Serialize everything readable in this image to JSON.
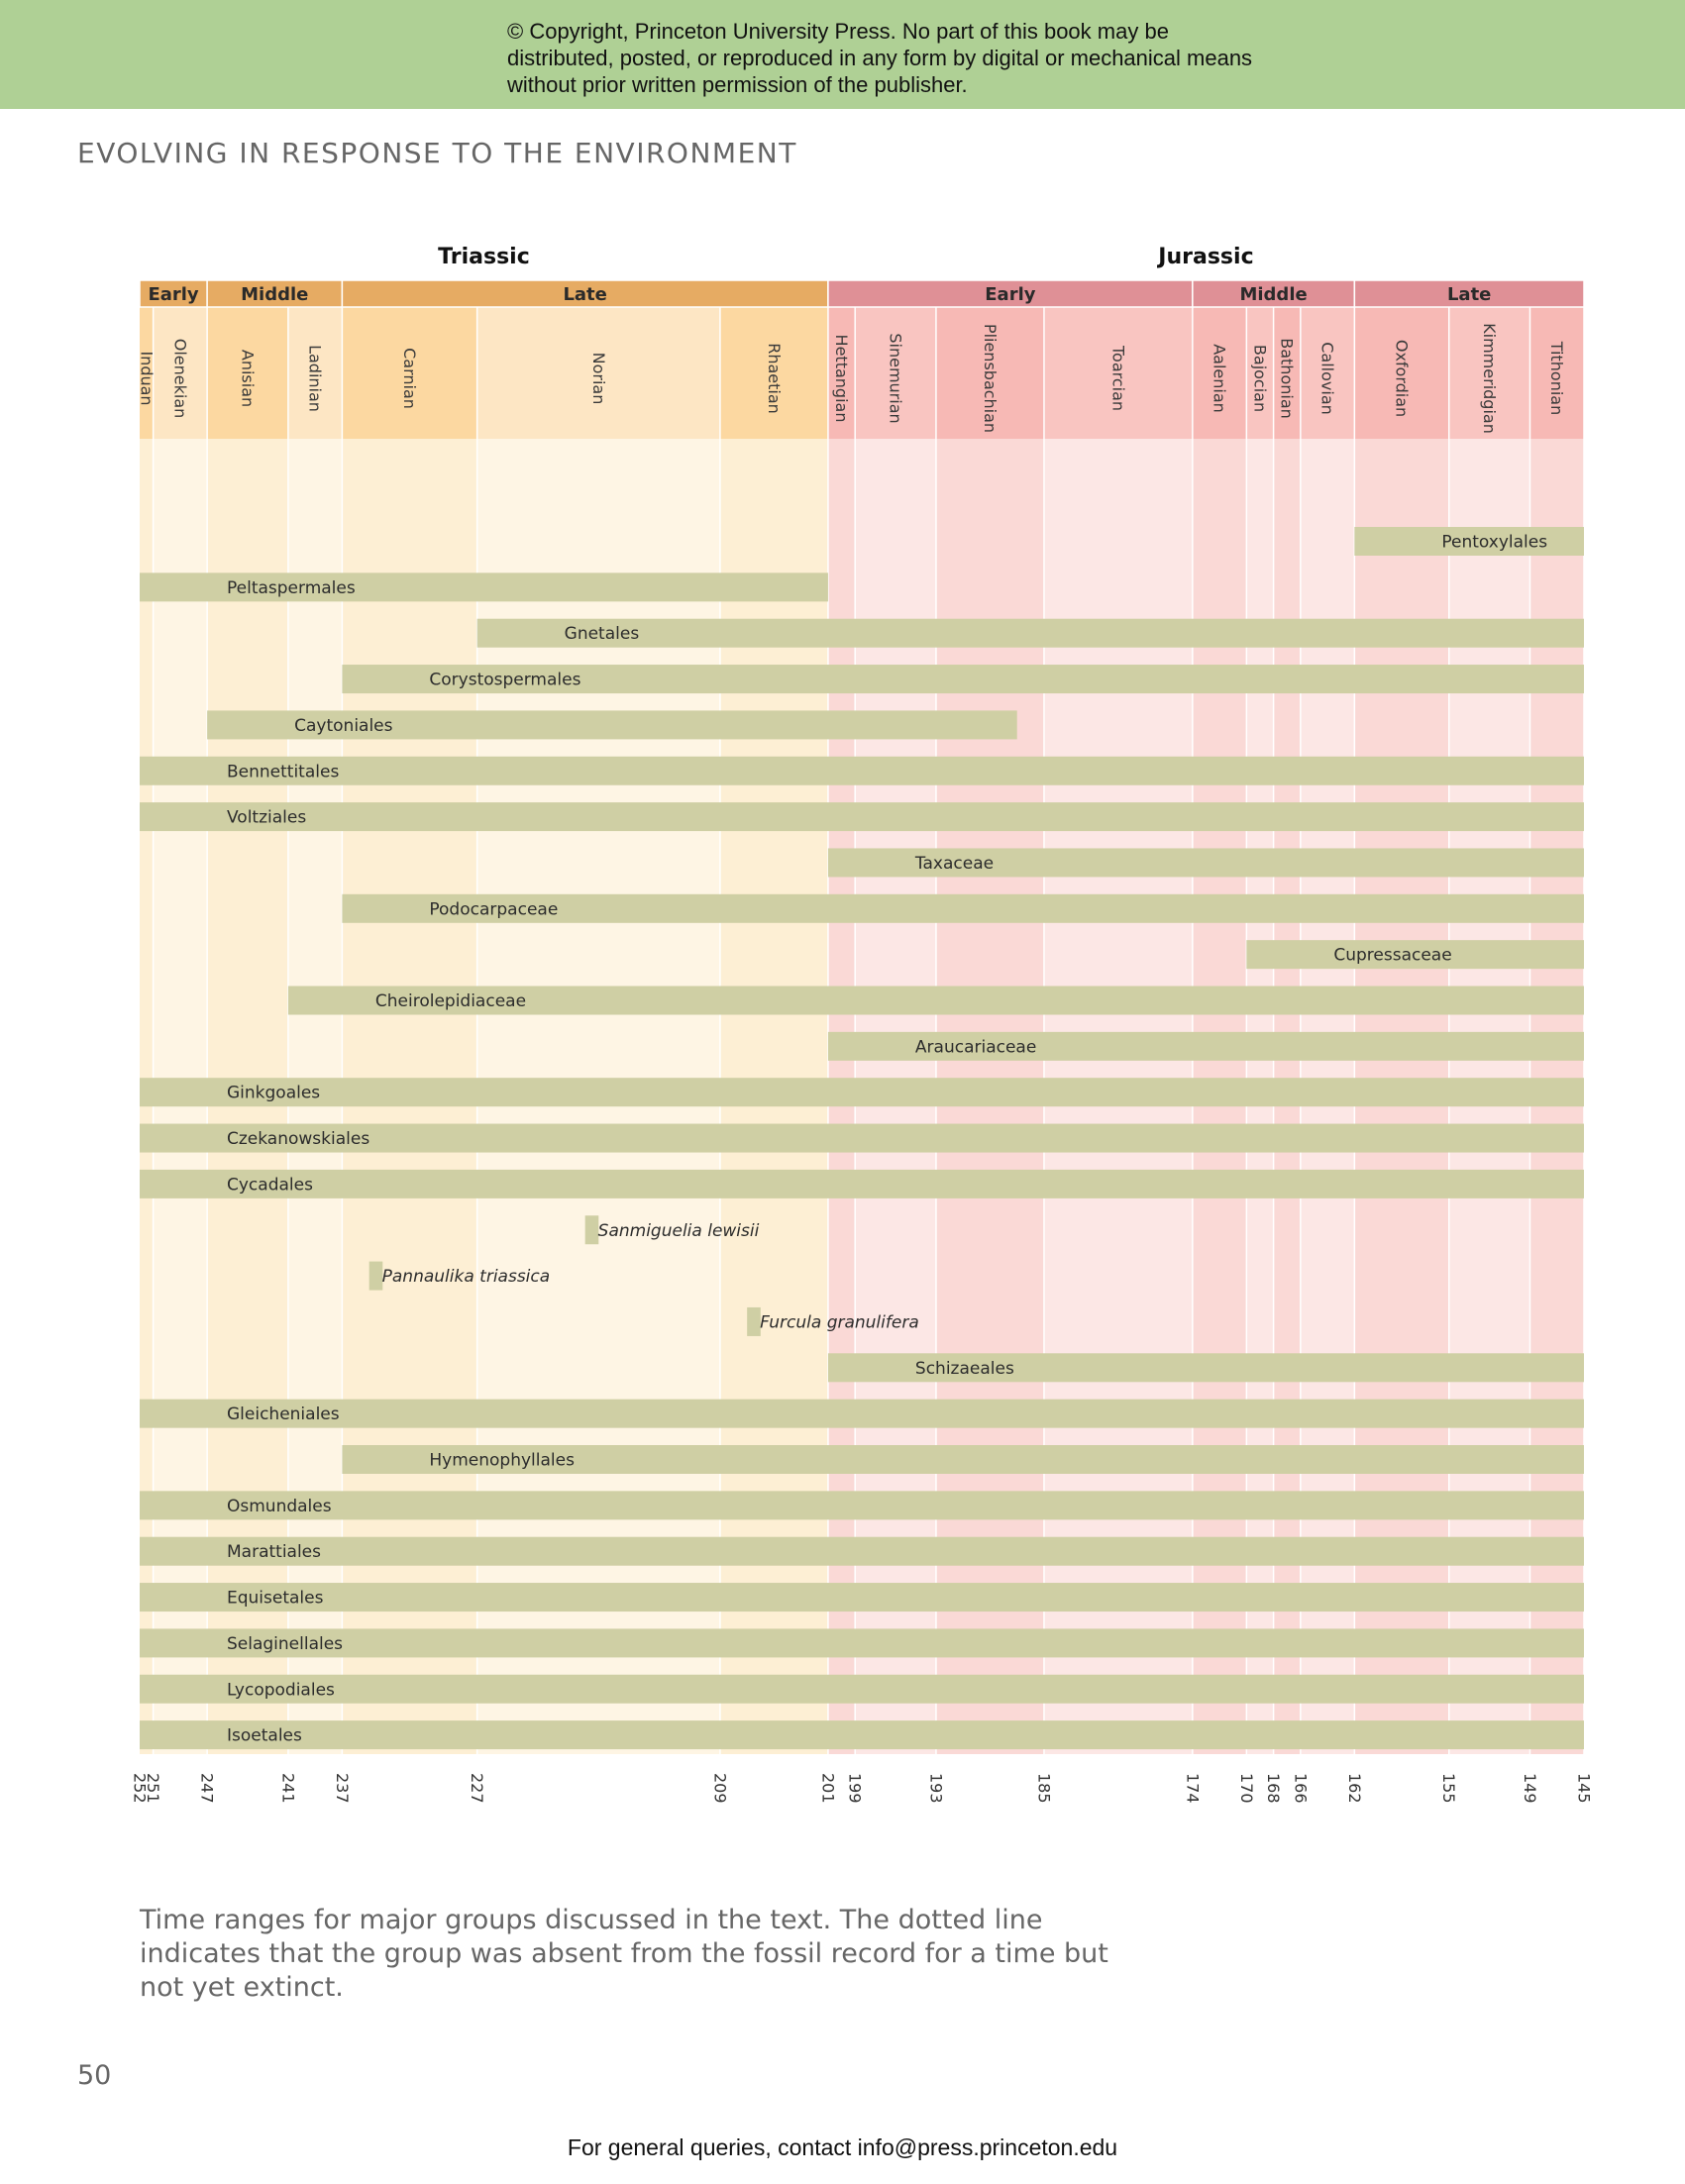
{
  "banner": {
    "copyright_text": "© Copyright, Princeton University Press. No part of this book may be distributed, posted, or reproduced in any form by digital or mechanical means without prior written permission of the publisher.",
    "color": "#afd095"
  },
  "running_head": "EVOLVING IN RESPONSE TO THE ENVIRONMENT",
  "caption": "Time ranges for major groups discussed in the text. The dotted line indicates that the group was absent from the fossil record for a time but not yet extinct.",
  "page_number": "50",
  "footer": "For general queries, contact info@press.princeton.edu",
  "colors": {
    "triassic_header": "#e6ab63",
    "jurassic_header": "#df9096",
    "bar": "#cfcfa4"
  },
  "chart_data": {
    "type": "bar",
    "orientation": "horizontal-range",
    "x_unit": "Ma",
    "xlim": [
      252,
      145
    ],
    "x_reversed": true,
    "x_ticks": [
      252,
      251,
      247,
      241,
      237,
      227,
      209,
      201,
      199,
      193,
      185,
      174,
      170,
      168,
      166,
      162,
      155,
      149,
      145
    ],
    "periods": [
      {
        "name": "Triassic",
        "start": 252,
        "end": 201
      },
      {
        "name": "Jurassic",
        "start": 201,
        "end": 145
      }
    ],
    "epochs": [
      {
        "name": "Early",
        "start": 252,
        "end": 247,
        "period": "Triassic"
      },
      {
        "name": "Middle",
        "start": 247,
        "end": 237,
        "period": "Triassic"
      },
      {
        "name": "Late",
        "start": 237,
        "end": 201,
        "period": "Triassic"
      },
      {
        "name": "Early",
        "start": 201,
        "end": 174,
        "period": "Jurassic"
      },
      {
        "name": "Middle",
        "start": 174,
        "end": 162,
        "period": "Jurassic"
      },
      {
        "name": "Late",
        "start": 162,
        "end": 145,
        "period": "Jurassic"
      }
    ],
    "stages": [
      {
        "name": "Induan",
        "start": 252,
        "end": 251,
        "period": "Triassic"
      },
      {
        "name": "Olenekian",
        "start": 251,
        "end": 247,
        "period": "Triassic"
      },
      {
        "name": "Anisian",
        "start": 247,
        "end": 241,
        "period": "Triassic"
      },
      {
        "name": "Ladinian",
        "start": 241,
        "end": 237,
        "period": "Triassic"
      },
      {
        "name": "Carnian",
        "start": 237,
        "end": 227,
        "period": "Triassic"
      },
      {
        "name": "Norian",
        "start": 227,
        "end": 209,
        "period": "Triassic"
      },
      {
        "name": "Rhaetian",
        "start": 209,
        "end": 201,
        "period": "Triassic"
      },
      {
        "name": "Hettangian",
        "start": 201,
        "end": 199,
        "period": "Jurassic"
      },
      {
        "name": "Sinemurian",
        "start": 199,
        "end": 193,
        "period": "Jurassic"
      },
      {
        "name": "Pliensbachian",
        "start": 193,
        "end": 185,
        "period": "Jurassic"
      },
      {
        "name": "Toarcian",
        "start": 185,
        "end": 174,
        "period": "Jurassic"
      },
      {
        "name": "Aalenian",
        "start": 174,
        "end": 170,
        "period": "Jurassic"
      },
      {
        "name": "Bajocian",
        "start": 170,
        "end": 168,
        "period": "Jurassic"
      },
      {
        "name": "Bathonian",
        "start": 168,
        "end": 166,
        "period": "Jurassic"
      },
      {
        "name": "Callovian",
        "start": 166,
        "end": 162,
        "period": "Jurassic"
      },
      {
        "name": "Oxfordian",
        "start": 162,
        "end": 155,
        "period": "Jurassic"
      },
      {
        "name": "Kimmeridgian",
        "start": 155,
        "end": 149,
        "period": "Jurassic"
      },
      {
        "name": "Tithonian",
        "start": 149,
        "end": 145,
        "period": "Jurassic"
      }
    ],
    "series": [
      {
        "name": "Pentoxylales",
        "start": 162,
        "end": 145,
        "italic": false
      },
      {
        "name": "Peltaspermales",
        "start": 252,
        "end": 201,
        "italic": false
      },
      {
        "name": "Gnetales",
        "start": 227,
        "end": 145,
        "italic": false
      },
      {
        "name": "Corystospermales",
        "start": 237,
        "end": 145,
        "italic": false
      },
      {
        "name": "Caytoniales",
        "start": 247,
        "end": 187,
        "italic": false
      },
      {
        "name": "Bennettitales",
        "start": 252,
        "end": 145,
        "italic": false
      },
      {
        "name": "Voltziales",
        "start": 252,
        "end": 145,
        "italic": false
      },
      {
        "name": "Taxaceae",
        "start": 201,
        "end": 145,
        "italic": false
      },
      {
        "name": "Podocarpaceae",
        "start": 237,
        "end": 145,
        "italic": false
      },
      {
        "name": "Cupressaceae",
        "start": 170,
        "end": 145,
        "italic": false
      },
      {
        "name": "Cheirolepidiaceae",
        "start": 241,
        "end": 145,
        "italic": false
      },
      {
        "name": "Araucariaceae",
        "start": 201,
        "end": 145,
        "italic": false
      },
      {
        "name": "Ginkgoales",
        "start": 252,
        "end": 145,
        "italic": false
      },
      {
        "name": "Czekanowskiales",
        "start": 252,
        "end": 145,
        "italic": false
      },
      {
        "name": "Cycadales",
        "start": 252,
        "end": 145,
        "italic": false
      },
      {
        "name": "Sanmiguelia lewisii",
        "start": 219,
        "end": 218,
        "italic": true
      },
      {
        "name": "Pannaulika triassica",
        "start": 235,
        "end": 234,
        "italic": true
      },
      {
        "name": "Furcula granulifera",
        "start": 207,
        "end": 206,
        "italic": true
      },
      {
        "name": "Schizaeales",
        "start": 201,
        "end": 145,
        "italic": false
      },
      {
        "name": "Gleicheniales",
        "start": 252,
        "end": 145,
        "italic": false
      },
      {
        "name": "Hymenophyllales",
        "start": 237,
        "end": 145,
        "italic": false
      },
      {
        "name": "Osmundales",
        "start": 252,
        "end": 145,
        "italic": false
      },
      {
        "name": "Marattiales",
        "start": 252,
        "end": 145,
        "italic": false
      },
      {
        "name": "Equisetales",
        "start": 252,
        "end": 145,
        "italic": false
      },
      {
        "name": "Selaginellales",
        "start": 252,
        "end": 145,
        "italic": false
      },
      {
        "name": "Lycopodiales",
        "start": 252,
        "end": 145,
        "italic": false
      },
      {
        "name": "Isoetales",
        "start": 252,
        "end": 145,
        "italic": false
      }
    ]
  }
}
